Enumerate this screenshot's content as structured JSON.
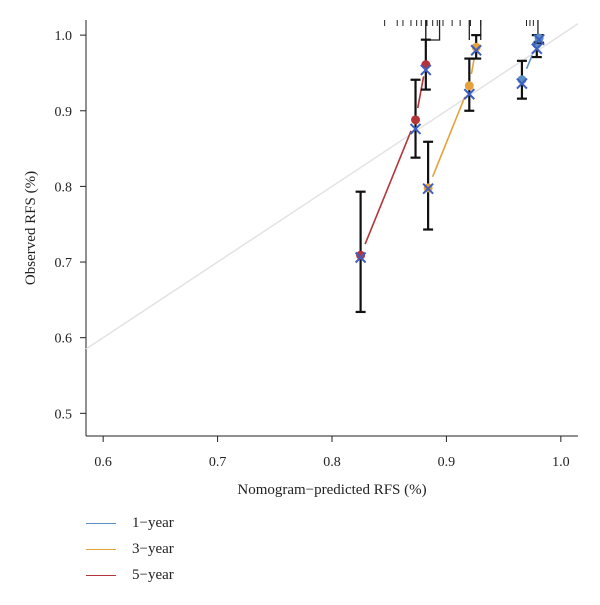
{
  "chart_data": {
    "type": "line",
    "title": "",
    "xlabel": "Nomogram−predicted RFS (%)",
    "ylabel": "Observed RFS (%)",
    "xlim": [
      0.585,
      1.015
    ],
    "ylim": [
      0.47,
      1.02
    ],
    "xticks": [
      0.6,
      0.7,
      0.8,
      0.9,
      1.0
    ],
    "xtick_labels": [
      "0.6",
      "0.7",
      "0.8",
      "0.9",
      "1.0"
    ],
    "yticks": [
      0.5,
      0.6,
      0.7,
      0.8,
      0.9,
      1.0
    ],
    "ytick_labels": [
      "0.5",
      "0.6",
      "0.7",
      "0.8",
      "0.9",
      "1.0"
    ],
    "reference_line": {
      "x": [
        0.585,
        1.015
      ],
      "y": [
        0.585,
        1.015
      ],
      "color": "#e3e3e3"
    },
    "legend_position": "bottom-left",
    "series": [
      {
        "name": "1−year",
        "color": "#5b8fc6",
        "points": [
          {
            "x": 0.966,
            "y": 0.941,
            "lo": 0.916,
            "hi": 0.966,
            "x_mark": 0.966,
            "y_mark": 0.936
          },
          {
            "x": 0.979,
            "y": 0.988,
            "lo": 0.971,
            "hi": 1.0,
            "x_mark": 0.979,
            "y_mark": 0.982
          },
          {
            "x": 0.981,
            "y": 0.996,
            "lo": 0.99,
            "hi": 1.0,
            "x_mark": 0.981,
            "y_mark": 0.994
          }
        ]
      },
      {
        "name": "3−year",
        "color": "#e6a23a",
        "points": [
          {
            "x": 0.884,
            "y": 0.798,
            "lo": 0.743,
            "hi": 0.859,
            "x_mark": 0.884,
            "y_mark": 0.797
          },
          {
            "x": 0.92,
            "y": 0.933,
            "lo": 0.9,
            "hi": 0.969,
            "x_mark": 0.92,
            "y_mark": 0.922
          },
          {
            "x": 0.926,
            "y": 0.984,
            "lo": 0.969,
            "hi": 1.0,
            "x_mark": 0.926,
            "y_mark": 0.98
          }
        ]
      },
      {
        "name": "5−year",
        "color": "#b5343a",
        "points": [
          {
            "x": 0.825,
            "y": 0.709,
            "lo": 0.634,
            "hi": 0.793,
            "x_mark": 0.825,
            "y_mark": 0.706
          },
          {
            "x": 0.873,
            "y": 0.888,
            "lo": 0.838,
            "hi": 0.941,
            "x_mark": 0.873,
            "y_mark": 0.876
          },
          {
            "x": 0.882,
            "y": 0.961,
            "lo": 0.928,
            "hi": 0.994,
            "x_mark": 0.882,
            "y_mark": 0.954
          }
        ]
      }
    ],
    "rug_ticks": [
      0.846,
      0.857,
      0.862,
      0.869,
      0.874,
      0.878,
      0.883,
      0.888,
      0.892,
      0.897,
      0.905,
      0.912,
      0.921,
      0.93,
      0.97,
      0.973,
      0.976,
      0.98
    ],
    "rug_ticks_tall": [
      0.882,
      0.92,
      0.93,
      0.98
    ]
  }
}
